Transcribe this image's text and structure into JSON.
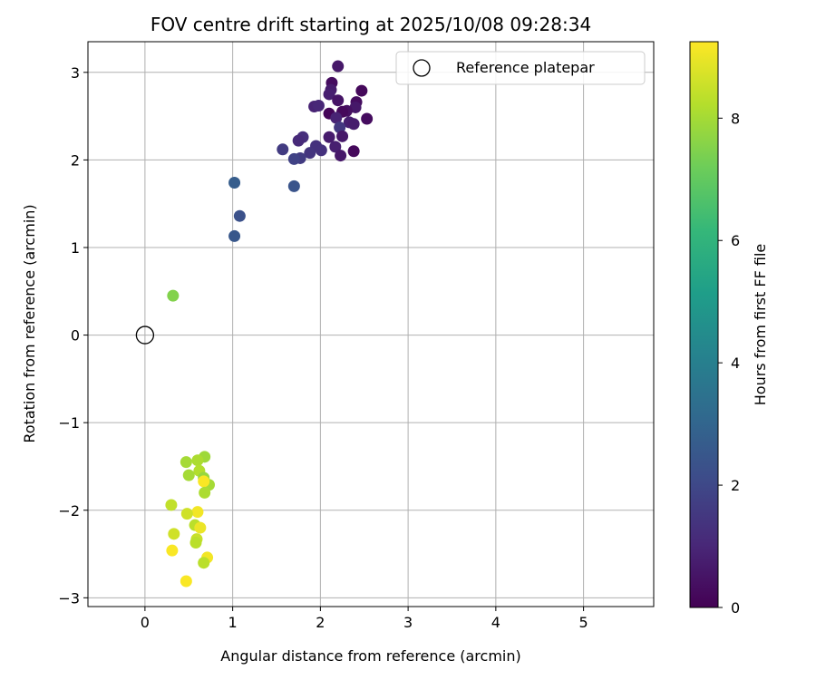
{
  "chart_data": {
    "type": "scatter",
    "title": "FOV centre drift starting at 2025/10/08 09:28:34",
    "xlabel": "Angular distance from reference (arcmin)",
    "ylabel": "Rotation from reference (arcmin)",
    "xlim": [
      -0.65,
      5.8
    ],
    "ylim": [
      -3.1,
      3.35
    ],
    "xticks": [
      0,
      1,
      2,
      3,
      4,
      5
    ],
    "xtick_labels": [
      "0",
      "1",
      "2",
      "3",
      "4",
      "5"
    ],
    "yticks": [
      -3,
      -2,
      -1,
      0,
      1,
      2,
      3
    ],
    "ytick_labels": [
      "−3",
      "−2",
      "−1",
      "0",
      "1",
      "2",
      "3"
    ],
    "grid": true,
    "legend": {
      "placement": "top-right",
      "entries": [
        "Reference platepar"
      ]
    },
    "reference_point": {
      "name": "Reference platepar",
      "x": 0,
      "y": 0
    },
    "colorbar": {
      "label": "Hours from first FF file",
      "range": [
        0,
        9.25
      ],
      "ticks": [
        0,
        2,
        4,
        6,
        8
      ],
      "tick_labels": [
        "0",
        "2",
        "4",
        "6",
        "8"
      ],
      "colormap": "viridis"
    },
    "points": [
      {
        "x": 2.2,
        "y": 3.07,
        "hours": 0.6
      },
      {
        "x": 2.13,
        "y": 2.88,
        "hours": 0.3
      },
      {
        "x": 2.12,
        "y": 2.8,
        "hours": 0.7
      },
      {
        "x": 2.1,
        "y": 2.75,
        "hours": 0.8
      },
      {
        "x": 2.47,
        "y": 2.79,
        "hours": 0.2
      },
      {
        "x": 2.2,
        "y": 2.68,
        "hours": 0.5
      },
      {
        "x": 2.41,
        "y": 2.66,
        "hours": 0.3
      },
      {
        "x": 2.4,
        "y": 2.6,
        "hours": 0.6
      },
      {
        "x": 1.93,
        "y": 2.61,
        "hours": 0.9
      },
      {
        "x": 1.98,
        "y": 2.62,
        "hours": 1.0
      },
      {
        "x": 2.3,
        "y": 2.56,
        "hours": 0.4
      },
      {
        "x": 2.25,
        "y": 2.55,
        "hours": 0.2
      },
      {
        "x": 2.1,
        "y": 2.53,
        "hours": 0.1
      },
      {
        "x": 2.18,
        "y": 2.48,
        "hours": 0.9
      },
      {
        "x": 2.53,
        "y": 2.47,
        "hours": 0.3
      },
      {
        "x": 2.33,
        "y": 2.43,
        "hours": 0.8
      },
      {
        "x": 2.38,
        "y": 2.41,
        "hours": 0.7
      },
      {
        "x": 2.22,
        "y": 2.37,
        "hours": 1.5
      },
      {
        "x": 2.25,
        "y": 2.27,
        "hours": 0.6
      },
      {
        "x": 2.1,
        "y": 2.26,
        "hours": 0.7
      },
      {
        "x": 1.8,
        "y": 2.26,
        "hours": 1.2
      },
      {
        "x": 1.75,
        "y": 2.22,
        "hours": 1.1
      },
      {
        "x": 2.17,
        "y": 2.15,
        "hours": 0.8
      },
      {
        "x": 1.95,
        "y": 2.16,
        "hours": 1.3
      },
      {
        "x": 1.57,
        "y": 2.12,
        "hours": 1.6
      },
      {
        "x": 2.01,
        "y": 2.11,
        "hours": 1.3
      },
      {
        "x": 2.38,
        "y": 2.1,
        "hours": 0.2
      },
      {
        "x": 1.88,
        "y": 2.08,
        "hours": 1.4
      },
      {
        "x": 2.23,
        "y": 2.05,
        "hours": 0.6
      },
      {
        "x": 1.77,
        "y": 2.02,
        "hours": 1.6
      },
      {
        "x": 1.7,
        "y": 2.01,
        "hours": 1.8
      },
      {
        "x": 1.02,
        "y": 1.74,
        "hours": 2.7
      },
      {
        "x": 1.7,
        "y": 1.7,
        "hours": 2.4
      },
      {
        "x": 1.08,
        "y": 1.36,
        "hours": 2.3
      },
      {
        "x": 1.02,
        "y": 1.13,
        "hours": 2.5
      },
      {
        "x": 0.32,
        "y": 0.45,
        "hours": 7.5
      },
      {
        "x": 0.68,
        "y": -1.39,
        "hours": 7.9
      },
      {
        "x": 0.47,
        "y": -1.45,
        "hours": 8.0
      },
      {
        "x": 0.6,
        "y": -1.43,
        "hours": 8.1
      },
      {
        "x": 0.62,
        "y": -1.55,
        "hours": 8.2
      },
      {
        "x": 0.5,
        "y": -1.6,
        "hours": 8.0
      },
      {
        "x": 0.67,
        "y": -1.63,
        "hours": 7.8
      },
      {
        "x": 0.73,
        "y": -1.71,
        "hours": 8.0
      },
      {
        "x": 0.67,
        "y": -1.67,
        "hours": 9.2
      },
      {
        "x": 0.68,
        "y": -1.8,
        "hours": 8.1
      },
      {
        "x": 0.3,
        "y": -1.94,
        "hours": 8.4
      },
      {
        "x": 0.6,
        "y": -2.02,
        "hours": 9.1
      },
      {
        "x": 0.48,
        "y": -2.04,
        "hours": 8.6
      },
      {
        "x": 0.57,
        "y": -2.17,
        "hours": 8.3
      },
      {
        "x": 0.63,
        "y": -2.2,
        "hours": 9.0
      },
      {
        "x": 0.33,
        "y": -2.27,
        "hours": 8.6
      },
      {
        "x": 0.59,
        "y": -2.33,
        "hours": 8.5
      },
      {
        "x": 0.58,
        "y": -2.37,
        "hours": 8.3
      },
      {
        "x": 0.31,
        "y": -2.46,
        "hours": 9.2
      },
      {
        "x": 0.71,
        "y": -2.54,
        "hours": 9.1
      },
      {
        "x": 0.67,
        "y": -2.6,
        "hours": 8.3
      },
      {
        "x": 0.47,
        "y": -2.81,
        "hours": 9.2
      }
    ]
  }
}
